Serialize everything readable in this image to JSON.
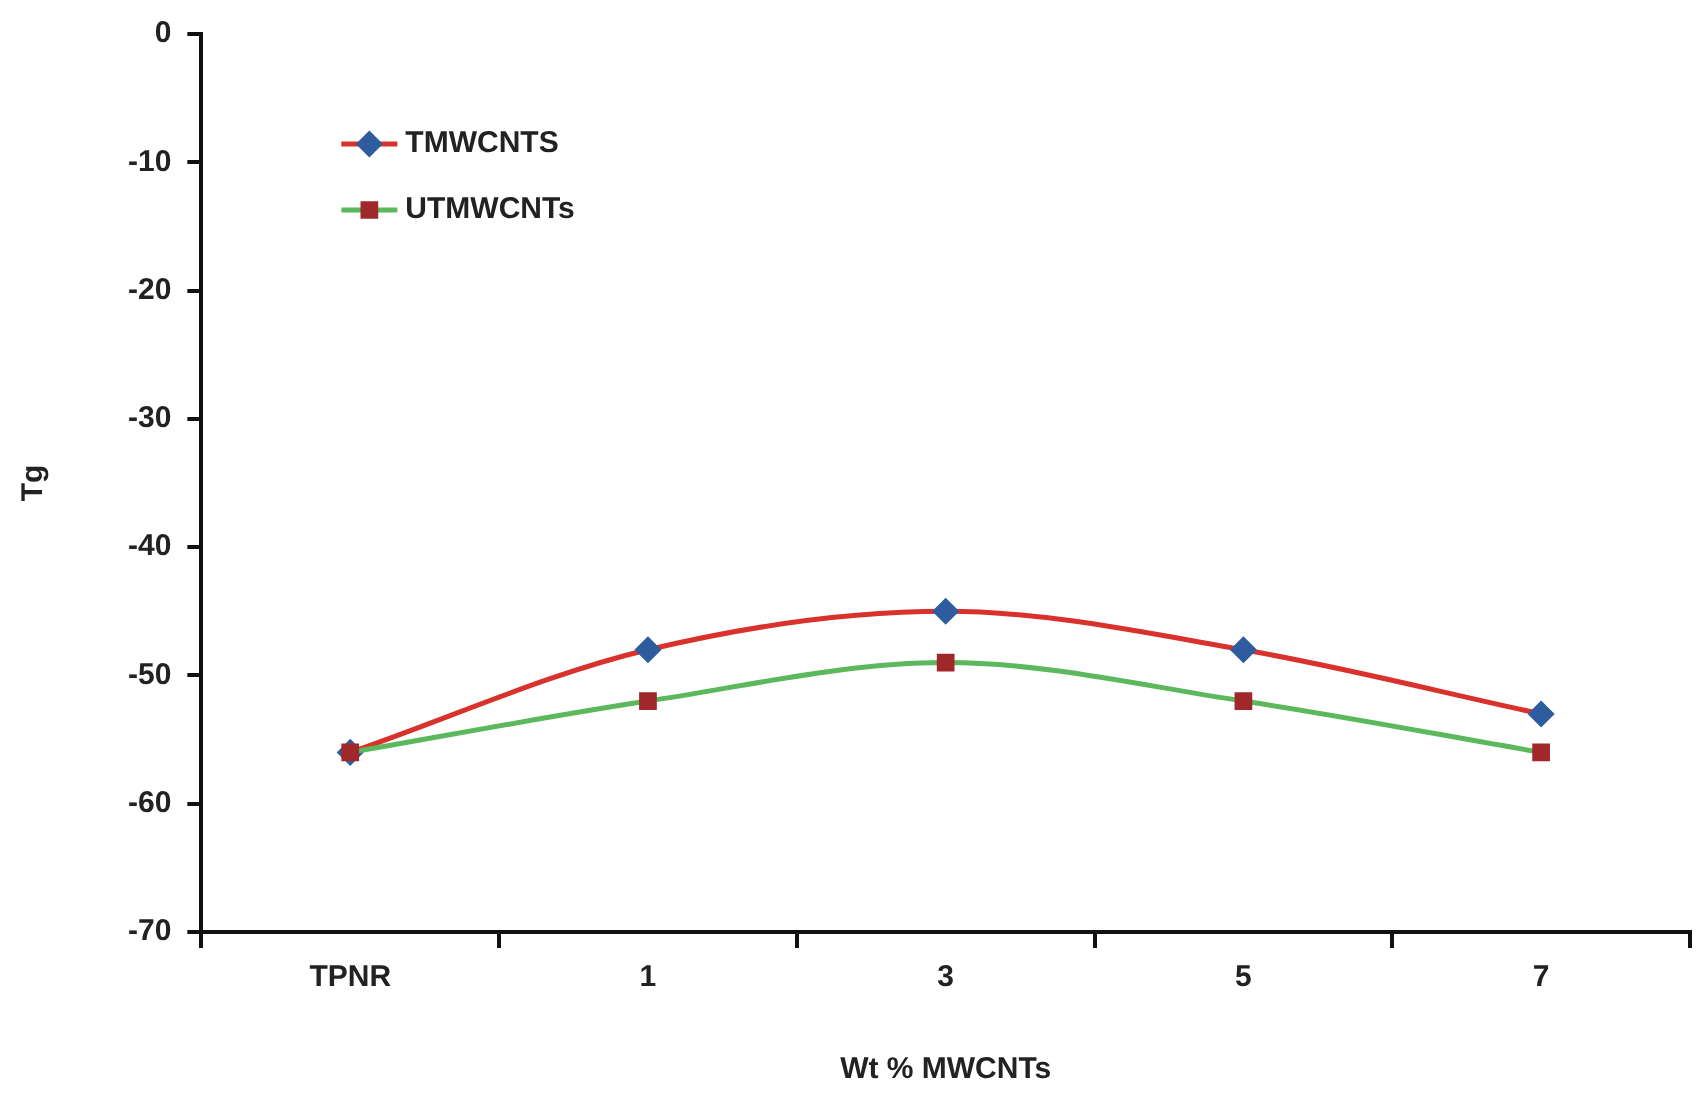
{
  "chart_data": {
    "type": "line",
    "xlabel": "Wt % MWCNTs",
    "ylabel": "Tg",
    "categories": [
      "TPNR",
      "1",
      "3",
      "5",
      "7"
    ],
    "series": [
      {
        "name": "TMWCNTS",
        "color": "#d9312b",
        "colors": [
          "#2e5c9e",
          "#2e5c9e",
          "#2e5c9e",
          "#2e5c9e",
          "#2e5c9e"
        ],
        "marker": "diamond",
        "values": [
          -56,
          -48,
          -45,
          -48,
          -53
        ]
      },
      {
        "name": "UTMWCNTs",
        "color": "#5cb85c",
        "colors": [
          "#a0282a",
          "#a0282a",
          "#a0282a",
          "#a0282a",
          "#a0282a"
        ],
        "marker": "square",
        "values": [
          -56,
          -52,
          -49,
          -52,
          -56
        ]
      }
    ],
    "ylim": [
      -70,
      0
    ],
    "yticks": [
      -70,
      -60,
      -50,
      -40,
      -30,
      -20,
      -10,
      0
    ],
    "grid": false,
    "legend": "top left",
    "line_style": "solid"
  }
}
